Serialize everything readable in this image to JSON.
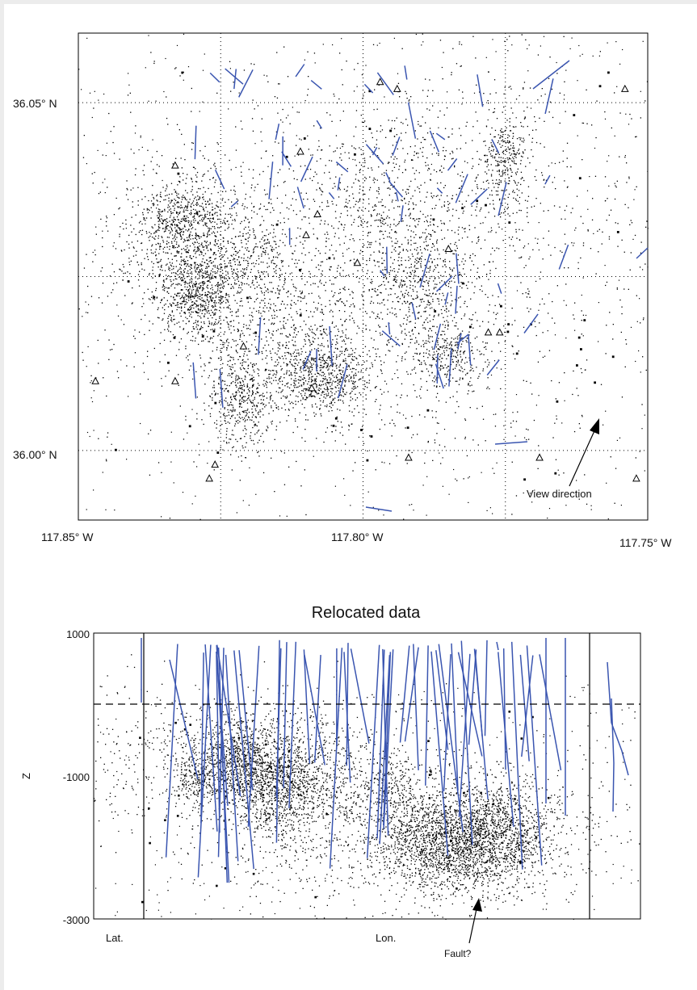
{
  "colors": {
    "background": "#ffffff",
    "page_border": "#ececec",
    "events": "#000000",
    "faults": "#3a55b0",
    "grid": "#000000"
  },
  "chart_data": [
    {
      "type": "scatter",
      "title": "",
      "xlabel": "",
      "ylabel": "",
      "x_ticks": [
        "117.85° W",
        "117.80° W",
        "117.75° W"
      ],
      "y_ticks": [
        "36.05° N",
        "36.00° N"
      ],
      "xlim_deg_west": [
        117.85,
        117.75
      ],
      "ylim_deg_north": [
        35.99,
        36.06
      ],
      "grid": "dotted",
      "series": [
        {
          "marker": "dot",
          "values": []
        },
        {
          "marker": "triangle",
          "values": []
        },
        {
          "marker": "line",
          "values": []
        }
      ],
      "clusters_lon_lat": [
        [
          117.807,
          36.011,
          0.004,
          0.003,
          650
        ],
        [
          117.785,
          36.0135,
          0.003,
          0.0025,
          280
        ],
        [
          117.79,
          36.025,
          0.0045,
          0.0045,
          450
        ],
        [
          117.775,
          36.042,
          0.002,
          0.004,
          250
        ],
        [
          117.821,
          36.007,
          0.003,
          0.003,
          380
        ],
        [
          117.829,
          36.023,
          0.0035,
          0.003,
          650
        ],
        [
          117.831,
          36.033,
          0.004,
          0.003,
          600
        ],
        [
          117.818,
          36.028,
          0.003,
          0.004,
          200
        ],
        [
          117.83,
          36.028,
          0.007,
          0.006,
          400
        ],
        [
          117.813,
          36.02,
          0.005,
          0.005,
          200
        ],
        [
          117.82,
          36.013,
          0.006,
          0.004,
          250
        ],
        [
          117.8,
          36.036,
          0.006,
          0.004,
          180
        ],
        [
          117.8,
          36.02,
          0.012,
          0.01,
          600
        ],
        [
          117.83,
          36.028,
          0.015,
          0.012,
          400
        ],
        [
          117.79,
          36.04,
          0.01,
          0.006,
          300
        ],
        [
          117.78,
          36.03,
          0.018,
          0.012,
          300
        ],
        [
          117.775,
          36.03,
          0.02,
          0.016,
          400
        ],
        [
          117.8,
          36.025,
          0.04,
          0.03,
          500
        ]
      ],
      "stations": [
        [
          117.754,
          36.052
        ],
        [
          117.794,
          36.052
        ],
        [
          117.797,
          36.053
        ],
        [
          117.811,
          36.043
        ],
        [
          117.833,
          36.041
        ],
        [
          117.808,
          36.034
        ],
        [
          117.81,
          36.031
        ],
        [
          117.801,
          36.027
        ],
        [
          117.785,
          36.029
        ],
        [
          117.778,
          36.017
        ],
        [
          117.776,
          36.017
        ],
        [
          117.821,
          36.015
        ],
        [
          117.833,
          36.01
        ],
        [
          117.847,
          36.01
        ],
        [
          117.809,
          36.009
        ],
        [
          117.792,
          35.999
        ],
        [
          117.826,
          35.998
        ],
        [
          117.752,
          35.996
        ],
        [
          117.827,
          35.996
        ],
        [
          117.769,
          35.999
        ]
      ],
      "annotations": [
        "View direction"
      ]
    },
    {
      "type": "scatter",
      "title": "Relocated data",
      "xlabel": "",
      "ylabel": "Z",
      "y_ticks": [
        "1000",
        "-1000",
        "-3000"
      ],
      "ylim": [
        -3000,
        1000
      ],
      "dashed_reference_z": 0,
      "x_markers": [
        "Lat.",
        "Lon."
      ],
      "grid": "off",
      "series": [
        {
          "marker": "dot",
          "values": []
        },
        {
          "marker": "line",
          "values": []
        }
      ],
      "clusters_u_z": [
        [
          0.19,
          -1050,
          0.025,
          220,
          250
        ],
        [
          0.27,
          -900,
          0.04,
          300,
          500
        ],
        [
          0.34,
          -1100,
          0.04,
          350,
          900
        ],
        [
          0.26,
          -700,
          0.03,
          250,
          250
        ],
        [
          0.43,
          -900,
          0.05,
          400,
          300
        ],
        [
          0.54,
          -1150,
          0.03,
          250,
          200
        ],
        [
          0.66,
          -1950,
          0.06,
          350,
          1300
        ],
        [
          0.75,
          -1800,
          0.04,
          350,
          600
        ],
        [
          0.62,
          -1800,
          0.06,
          300,
          400
        ],
        [
          0.7,
          -1750,
          0.12,
          450,
          600
        ],
        [
          0.4,
          -1400,
          0.15,
          700,
          400
        ],
        [
          0.6,
          -1500,
          0.2,
          700,
          400
        ],
        [
          0.25,
          -500,
          0.1,
          400,
          300
        ],
        [
          0.04,
          -700,
          0.06,
          500,
          120
        ],
        [
          0.5,
          -2100,
          0.18,
          300,
          200
        ]
      ],
      "annotations": [
        "Fault?"
      ]
    }
  ]
}
